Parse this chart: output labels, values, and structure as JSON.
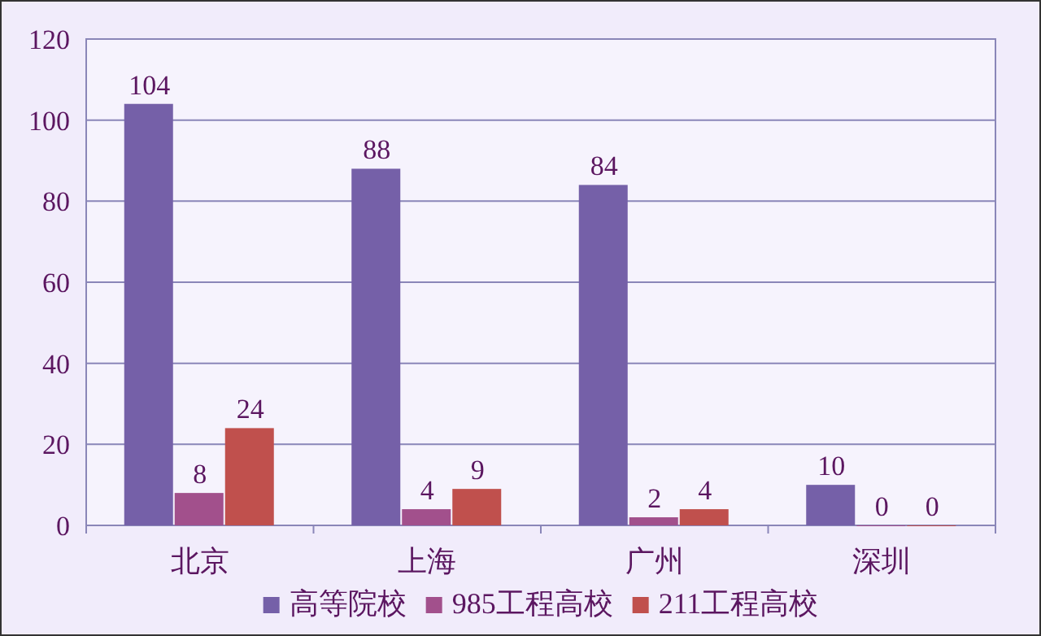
{
  "chart_data": {
    "type": "bar",
    "categories": [
      "北京",
      "上海",
      "广州",
      "深圳"
    ],
    "series": [
      {
        "name": "高等院校",
        "color": "#7560a8",
        "values": [
          104,
          88,
          84,
          10
        ]
      },
      {
        "name": "985工程高校",
        "color": "#a2508c",
        "values": [
          8,
          4,
          2,
          0
        ]
      },
      {
        "name": "211工程高校",
        "color": "#c0504d",
        "values": [
          24,
          9,
          4,
          0
        ]
      }
    ],
    "ylim": [
      0,
      120
    ],
    "yticks": [
      0,
      20,
      40,
      60,
      80,
      100,
      120
    ],
    "grid": "y",
    "legend": "bottom",
    "data_labels": true
  }
}
